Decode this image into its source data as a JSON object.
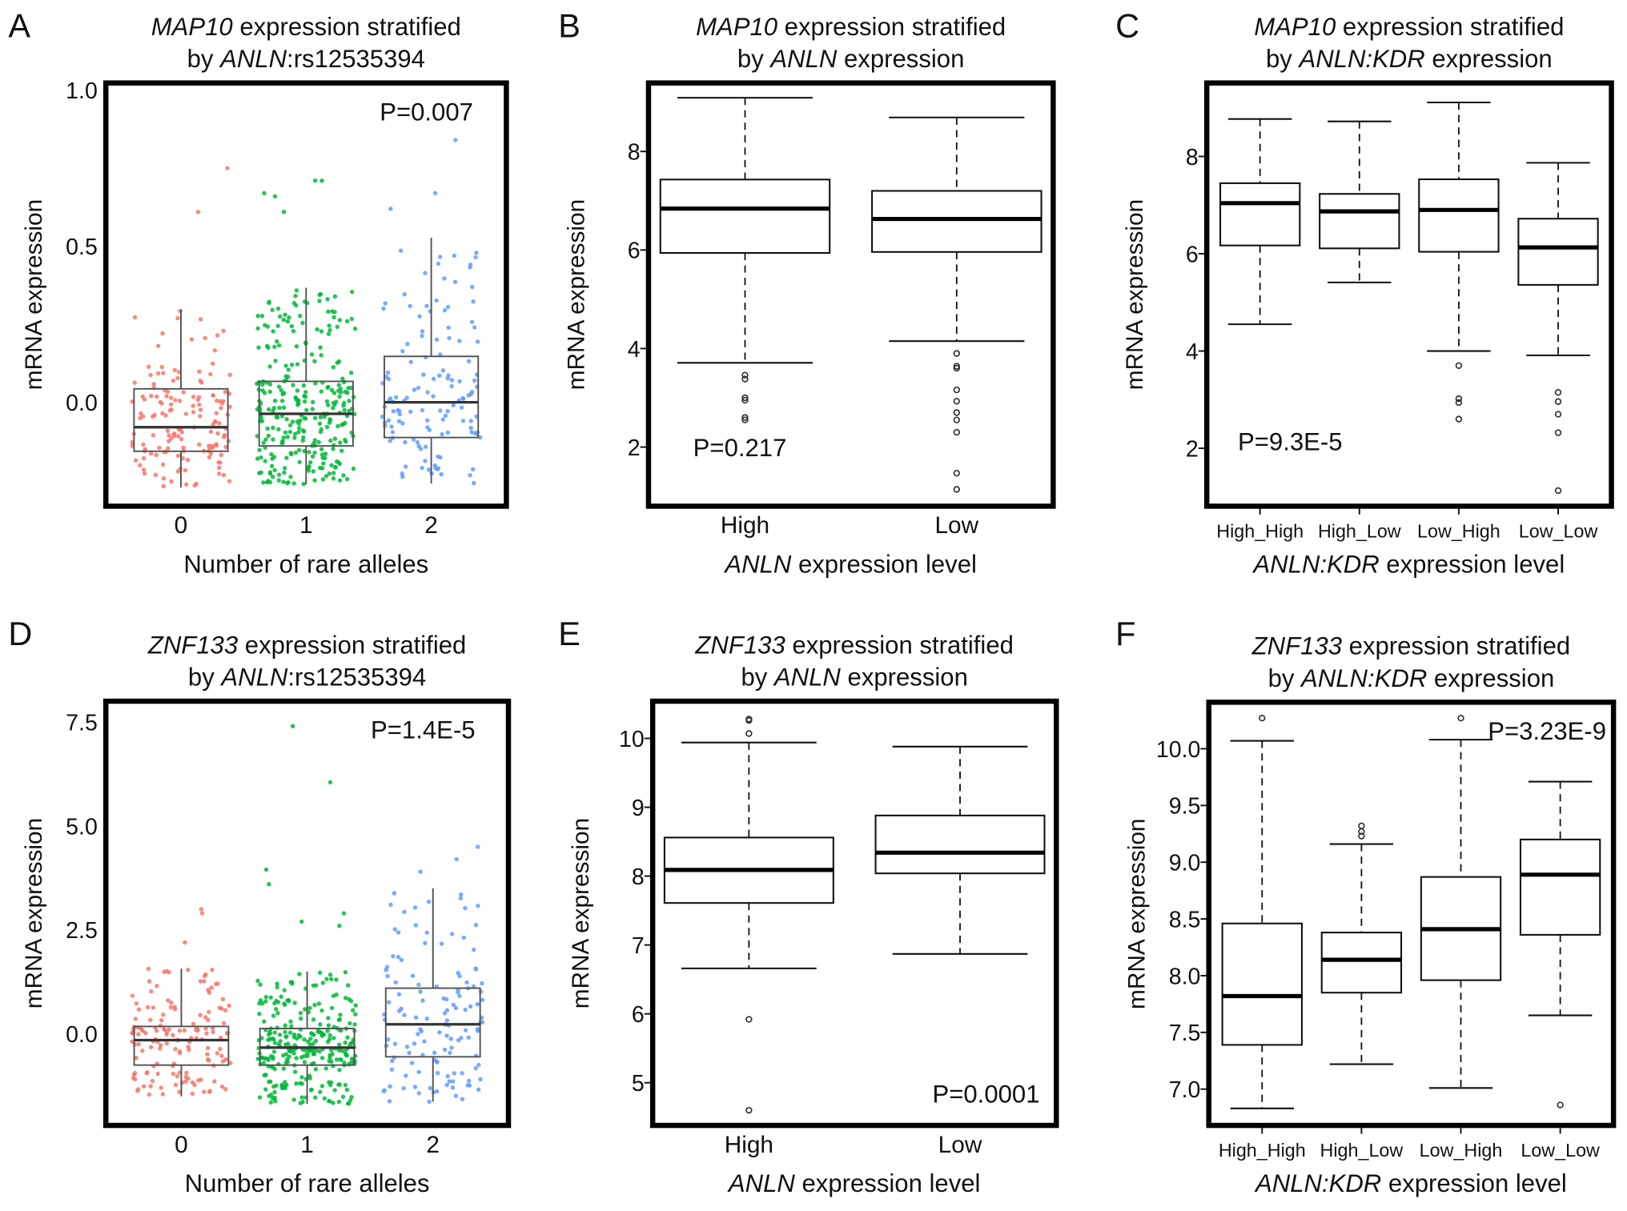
{
  "chart_data": [
    {
      "letter": "A",
      "type": "box-jitter",
      "title": [
        [
          {
            "text": "MAP10",
            "italic": true
          },
          {
            "text": " expression stratified"
          }
        ],
        [
          {
            "text": "by "
          },
          {
            "text": "ANLN",
            "italic": true
          },
          {
            "text": ":rs12535394"
          }
        ]
      ],
      "xlabel": [
        {
          "text": "Number of rare alleles"
        }
      ],
      "ylabel": "mRNA expression",
      "categories": [
        "0",
        "1",
        "2"
      ],
      "ylim": [
        -0.333,
        1.023
      ],
      "yticks": [
        0,
        0.5,
        1.0
      ],
      "ytick_labels": [
        "0.0",
        "0.5",
        "1.0"
      ],
      "colors": [
        "#f8766d",
        "#00ba38",
        "#619cff"
      ],
      "groups": [
        {
          "whisker_low": -0.273,
          "q1": -0.157,
          "median": -0.08,
          "q3": 0.043,
          "whisker_high": 0.297,
          "n": 150,
          "outliers": [
            0.75,
            0.61
          ]
        },
        {
          "whisker_low": -0.263,
          "q1": -0.14,
          "median": -0.037,
          "q3": 0.067,
          "whisker_high": 0.367,
          "n": 290,
          "outliers": [
            0.71,
            0.71,
            0.66,
            0.67,
            0.61
          ]
        },
        {
          "whisker_low": -0.26,
          "q1": -0.113,
          "median": 0.0,
          "q3": 0.147,
          "whisker_high": 0.527,
          "n": 130,
          "outliers": [
            0.84,
            0.67,
            0.62
          ]
        }
      ],
      "p_value": "P=0.007",
      "p_position": "top-right"
    },
    {
      "letter": "B",
      "type": "box",
      "title": [
        [
          {
            "text": "MAP10",
            "italic": true
          },
          {
            "text": " expression stratified"
          }
        ],
        [
          {
            "text": "by "
          },
          {
            "text": "ANLN",
            "italic": true
          },
          {
            "text": " expression"
          }
        ]
      ],
      "xlabel": [
        {
          "text": "ANLN",
          "italic": true
        },
        {
          "text": " expression level"
        }
      ],
      "ylabel": "mRNA expression",
      "categories": [
        "High",
        "Low"
      ],
      "ylim": [
        0.8,
        9.39
      ],
      "yticks": [
        2,
        4,
        6,
        8
      ],
      "ytick_labels": [
        "2",
        "4",
        "6",
        "8"
      ],
      "groups": [
        {
          "whisker_low": 3.71,
          "q1": 5.94,
          "median": 6.84,
          "q3": 7.43,
          "whisker_high": 9.09,
          "outliers": [
            3.46,
            3.38,
            3.0,
            2.95,
            2.6,
            2.55
          ]
        },
        {
          "whisker_low": 4.15,
          "q1": 5.96,
          "median": 6.63,
          "q3": 7.2,
          "whisker_high": 8.69,
          "outliers": [
            3.9,
            3.64,
            3.6,
            3.16,
            2.93,
            2.7,
            2.55,
            2.3,
            1.47,
            1.14
          ]
        }
      ],
      "p_value": "P=0.217",
      "p_position": "bottom-left"
    },
    {
      "letter": "C",
      "type": "box",
      "title": [
        [
          {
            "text": "MAP10",
            "italic": true
          },
          {
            "text": " expression stratified"
          }
        ],
        [
          {
            "text": "by "
          },
          {
            "text": "ANLN:KDR",
            "italic": true
          },
          {
            "text": " expression"
          }
        ]
      ],
      "xlabel": [
        {
          "text": "ANLN:KDR",
          "italic": true
        },
        {
          "text": " expression level"
        }
      ],
      "ylabel": "mRNA expression",
      "categories": [
        "High_High",
        "High_Low",
        "Low_High",
        "Low_Low"
      ],
      "ylim": [
        0.81,
        9.51
      ],
      "yticks": [
        2,
        4,
        6,
        8
      ],
      "ytick_labels": [
        "2",
        "4",
        "6",
        "8"
      ],
      "groups": [
        {
          "whisker_low": 4.55,
          "q1": 6.17,
          "median": 7.04,
          "q3": 7.45,
          "whisker_high": 8.77,
          "outliers": []
        },
        {
          "whisker_low": 5.41,
          "q1": 6.11,
          "median": 6.87,
          "q3": 7.23,
          "whisker_high": 8.72,
          "outliers": []
        },
        {
          "whisker_low": 4.0,
          "q1": 6.04,
          "median": 6.9,
          "q3": 7.53,
          "whisker_high": 9.11,
          "outliers": [
            3.7,
            3.02,
            2.94,
            2.6
          ]
        },
        {
          "whisker_low": 3.91,
          "q1": 5.36,
          "median": 6.13,
          "q3": 6.72,
          "whisker_high": 7.87,
          "outliers": [
            3.15,
            2.96,
            2.7,
            2.32,
            1.13
          ]
        }
      ],
      "p_value": "P=9.3E-5",
      "p_position": "bottom-left"
    },
    {
      "letter": "D",
      "type": "box-jitter",
      "title": [
        [
          {
            "text": "ZNF133",
            "italic": true
          },
          {
            "text": " expression stratified"
          }
        ],
        [
          {
            "text": "by "
          },
          {
            "text": "ANLN",
            "italic": true
          },
          {
            "text": ":rs12535394"
          }
        ]
      ],
      "xlabel": [
        {
          "text": "Number of rare alleles"
        }
      ],
      "ylabel": "mRNA expression",
      "categories": [
        "0",
        "1",
        "2"
      ],
      "ylim": [
        -2.2,
        8.0
      ],
      "yticks": [
        0,
        2.5,
        5.0,
        7.5
      ],
      "ytick_labels": [
        "0.0",
        "2.5",
        "5.0",
        "7.5"
      ],
      "colors": [
        "#f8766d",
        "#00ba38",
        "#619cff"
      ],
      "groups": [
        {
          "whisker_low": -1.5,
          "q1": -0.75,
          "median": -0.15,
          "q3": 0.18,
          "whisker_high": 1.57,
          "n": 150,
          "outliers": [
            3.0,
            2.9,
            2.2
          ]
        },
        {
          "whisker_low": -1.68,
          "q1": -0.75,
          "median": -0.33,
          "q3": 0.13,
          "whisker_high": 1.5,
          "n": 290,
          "outliers": [
            7.4,
            6.05,
            3.95,
            3.6,
            2.9,
            2.7,
            2.6
          ]
        },
        {
          "whisker_low": -1.63,
          "q1": -0.55,
          "median": 0.23,
          "q3": 1.1,
          "whisker_high": 3.5,
          "n": 130,
          "outliers": [
            4.5,
            4.2,
            3.9
          ]
        }
      ],
      "p_value": "P=1.4E-5",
      "p_position": "top-right"
    },
    {
      "letter": "E",
      "type": "box",
      "title": [
        [
          {
            "text": "ZNF133",
            "italic": true
          },
          {
            "text": " expression stratified"
          }
        ],
        [
          {
            "text": "by "
          },
          {
            "text": "ANLN",
            "italic": true
          },
          {
            "text": " expression"
          }
        ]
      ],
      "xlabel": [
        {
          "text": "ANLN",
          "italic": true
        },
        {
          "text": " expression level"
        }
      ],
      "ylabel": "mRNA expression",
      "categories": [
        "High",
        "Low"
      ],
      "ylim": [
        4.38,
        10.54
      ],
      "yticks": [
        5,
        6,
        7,
        8,
        9,
        10
      ],
      "ytick_labels": [
        "5",
        "6",
        "7",
        "8",
        "9",
        "10"
      ],
      "groups": [
        {
          "whisker_low": 6.66,
          "q1": 7.61,
          "median": 8.09,
          "q3": 8.56,
          "whisker_high": 9.94,
          "outliers": [
            10.28,
            10.26,
            10.07,
            5.92,
            4.6
          ]
        },
        {
          "whisker_low": 6.87,
          "q1": 8.04,
          "median": 8.34,
          "q3": 8.88,
          "whisker_high": 9.88,
          "outliers": []
        }
      ],
      "p_value": "P=0.0001",
      "p_position": "bottom-right"
    },
    {
      "letter": "F",
      "type": "box",
      "title": [
        [
          {
            "text": "ZNF133",
            "italic": true
          },
          {
            "text": " expression stratified"
          }
        ],
        [
          {
            "text": "by "
          },
          {
            "text": "ANLN:KDR",
            "italic": true
          },
          {
            "text": " expression"
          }
        ]
      ],
      "xlabel": [
        {
          "text": "ANLN:KDR",
          "italic": true
        },
        {
          "text": " expression level"
        }
      ],
      "ylabel": "mRNA expression",
      "categories": [
        "High_High",
        "High_Low",
        "Low_High",
        "Low_Low"
      ],
      "ylim": [
        6.68,
        10.41
      ],
      "yticks": [
        7.0,
        7.5,
        8.0,
        8.5,
        9.0,
        9.5,
        10.0
      ],
      "ytick_labels": [
        "7.0",
        "7.5",
        "8.0",
        "8.5",
        "9.0",
        "9.5",
        "10.0"
      ],
      "groups": [
        {
          "whisker_low": 6.83,
          "q1": 7.39,
          "median": 7.82,
          "q3": 8.46,
          "whisker_high": 10.07,
          "outliers": [
            10.27
          ]
        },
        {
          "whisker_low": 7.22,
          "q1": 7.85,
          "median": 8.14,
          "q3": 8.38,
          "whisker_high": 9.16,
          "outliers": [
            9.23,
            9.27,
            9.32
          ]
        },
        {
          "whisker_low": 7.01,
          "q1": 7.96,
          "median": 8.41,
          "q3": 8.87,
          "whisker_high": 10.08,
          "outliers": [
            10.27
          ]
        },
        {
          "whisker_low": 7.65,
          "q1": 8.36,
          "median": 8.89,
          "q3": 9.2,
          "whisker_high": 9.71,
          "outliers": [
            6.86
          ]
        }
      ],
      "p_value": "P=3.23E-9",
      "p_position": "top-right"
    }
  ]
}
